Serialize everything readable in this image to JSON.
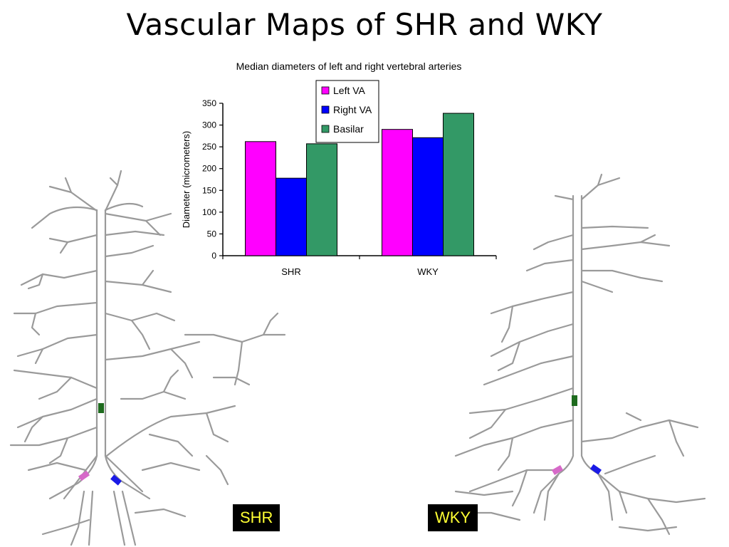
{
  "slide": {
    "title": "Vascular Maps of SHR and WKY"
  },
  "maps": {
    "shr_label": "SHR",
    "wky_label": "WKY",
    "vessel_color": "#9a9a9a",
    "marker_colors": {
      "basilar": "#1e6b1e",
      "left_va": "#d669c8",
      "right_va": "#1a1ae6"
    }
  },
  "chart_data": {
    "type": "bar",
    "title": "Median diameters of left and right vertebral arteries",
    "xlabel": "",
    "ylabel": "Diameter (micrometers)",
    "categories": [
      "SHR",
      "WKY"
    ],
    "series": [
      {
        "name": "Left VA",
        "color": "#ff00ff",
        "values": [
          262,
          290
        ]
      },
      {
        "name": "Right VA",
        "color": "#0000ff",
        "values": [
          178,
          271
        ]
      },
      {
        "name": "Basilar",
        "color": "#339966",
        "values": [
          257,
          327
        ]
      }
    ],
    "ylim": [
      0,
      350
    ],
    "yticks": [
      0,
      50,
      100,
      150,
      200,
      250,
      300,
      350
    ],
    "grid": false,
    "legend": "top-center"
  }
}
